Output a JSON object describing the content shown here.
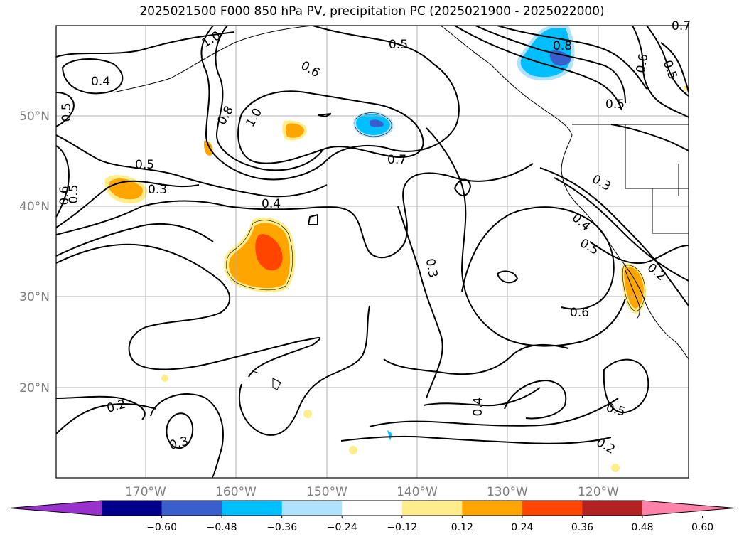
{
  "title": "2025021500 F000 850 hPa PV, precipitation PC (2025021900 - 2025022000)",
  "lat_labels": [
    "50°N",
    "40°N",
    "30°N",
    "20°N"
  ],
  "lon_labels": [
    "170°W",
    "160°W",
    "150°W",
    "140°W",
    "130°W",
    "120°W"
  ],
  "contour_labels": [
    "0.4",
    "0.5",
    "0.6",
    "0.5",
    "0.5",
    "0.3",
    "0.4",
    "0.7",
    "1.0",
    "0.8",
    "1.0",
    "0.6",
    "0.5",
    "0.7",
    "0.8",
    "0.6",
    "0.5",
    "0.5",
    "0.3",
    "0.4",
    "0.5",
    "0.2",
    "0.6",
    "0.3",
    "0.4",
    "0.2",
    "0.3",
    "0.5",
    "0.2"
  ],
  "colorbar": {
    "tick_labels": [
      "−0.60",
      "−0.48",
      "−0.36",
      "−0.24",
      "−0.12",
      "0.12",
      "0.24",
      "0.36",
      "0.48",
      "0.60"
    ],
    "colors": [
      "#9932cc",
      "#00008b",
      "#3a5fcd",
      "#00bfff",
      "#b0e2ff",
      "#ffffff",
      "#ffec8b",
      "#ffa500",
      "#ff4500",
      "#b22222",
      "#ff82ab"
    ]
  }
}
